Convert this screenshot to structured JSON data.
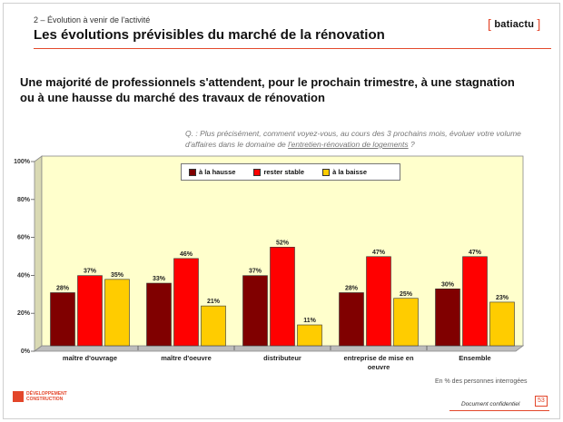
{
  "header": {
    "section": "2 – Évolution à venir de l'activité",
    "title": "Les évolutions prévisibles du marché de la rénovation",
    "brand_name": "batiactu",
    "brand_bracket_open": "[",
    "brand_bracket_close": "]"
  },
  "headline": "Une majorité de professionnels s'attendent, pour le prochain trimestre, à une stagnation ou à une hausse du marché des travaux de rénovation",
  "question": {
    "prefix": "Q. : ",
    "text_before": "Plus précisément, comment voyez-vous, au cours des 3 prochains mois, évoluer votre volume d'affaires dans le domaine de ",
    "underlined": "l'entretien-rénovation de logements",
    "text_after": " ?"
  },
  "footnote": "En % des personnes interrogées",
  "footer": {
    "logo_line1": "DÉVELOPPEMENT",
    "logo_line2": "CONSTRUCTION",
    "confidential": "Document confidentiel",
    "page_number": "53"
  },
  "colors": {
    "accent": "#e3462a",
    "plot_background": "#ffffcc",
    "series": [
      "#800000",
      "#ff0000",
      "#ffcc00"
    ]
  },
  "chart_data": {
    "type": "bar",
    "categories": [
      "maître d'ouvrage",
      "maître d'oeuvre",
      "distributeur",
      "entreprise de mise en oeuvre",
      "Ensemble"
    ],
    "series": [
      {
        "name": "à la hausse",
        "values": [
          28,
          33,
          37,
          28,
          30
        ],
        "labels": [
          "28%",
          "33%",
          "37%",
          "28%",
          "30%"
        ]
      },
      {
        "name": "rester stable",
        "values": [
          37,
          46,
          52,
          47,
          47
        ],
        "labels": [
          "37%",
          "46%",
          "52%",
          "47%",
          "47%"
        ]
      },
      {
        "name": "à la baisse",
        "values": [
          35,
          21,
          11,
          25,
          23
        ],
        "labels": [
          "35%",
          "21%",
          "11%",
          "25%",
          "23%"
        ]
      }
    ],
    "ylim": [
      0,
      100
    ],
    "yticks": [
      0,
      20,
      40,
      60,
      80,
      100
    ],
    "ytick_labels": [
      "0%",
      "20%",
      "40%",
      "60%",
      "80%",
      "100%"
    ],
    "grid": false,
    "legend_position": "top-center"
  }
}
